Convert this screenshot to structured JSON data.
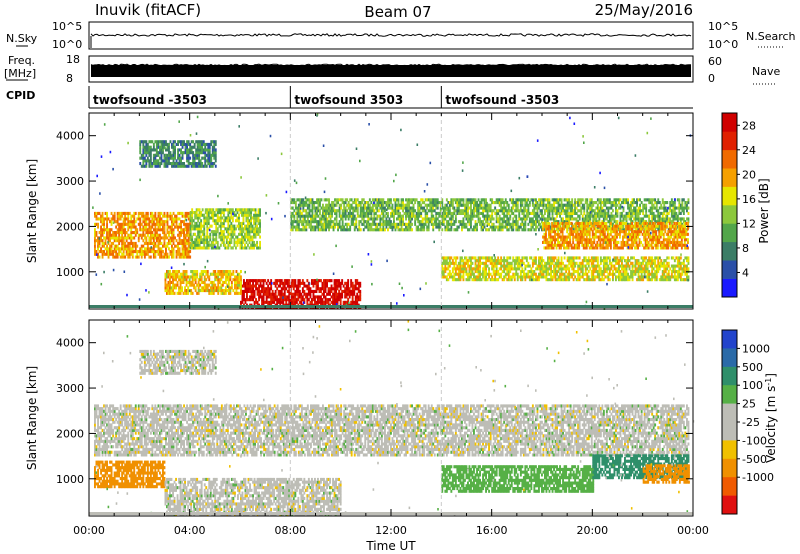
{
  "header": {
    "station": "Inuvik (fitACF)",
    "beam": "Beam 07",
    "date": "25/May/2016"
  },
  "top_panels": {
    "nsky_label": "N.Sky",
    "nsky_ticks": [
      "10^5",
      "10^0"
    ],
    "nsearch_label": "N.Search",
    "nsearch_ticks": [
      "10^5",
      "10^0"
    ],
    "freq_label": "Freq.",
    "freq_unit": "[MHz]",
    "freq_ticks": [
      "18",
      "8"
    ],
    "nave_label": "Nave",
    "nave_ticks": [
      "60",
      "0"
    ],
    "cpid_label": "CPID",
    "cpid_segments": [
      {
        "name": "twofsound -3503",
        "start_hour": 0
      },
      {
        "name": "twofsound 3503",
        "start_hour": 8
      },
      {
        "name": "twofsound -3503",
        "start_hour": 14
      }
    ]
  },
  "axes": {
    "xlabel": "Time UT",
    "x_ticks": [
      "00:00",
      "04:00",
      "08:00",
      "12:00",
      "16:00",
      "20:00",
      "00:00"
    ],
    "ylabel": "Slant Range [km]",
    "y_ticks": [
      "1000",
      "2000",
      "3000",
      "4000"
    ]
  },
  "colorbars": {
    "power": {
      "label": "Power [dB]",
      "ticks": [
        "4",
        "8",
        "12",
        "16",
        "20",
        "24",
        "28"
      ],
      "colors": [
        "#1a1aff",
        "#2a4fa8",
        "#3b7d66",
        "#52a64a",
        "#8cc83c",
        "#e6e600",
        "#f5a000",
        "#f06a00",
        "#e02000",
        "#d00000"
      ]
    },
    "velocity": {
      "label": "Velocity [m s",
      "label_exp": "-1",
      "label_end": "]",
      "ticks": [
        "1000",
        "500",
        "100",
        "25",
        "-25",
        "-100",
        "-500",
        "-1000"
      ],
      "colors": [
        "#2244cc",
        "#2a6aa8",
        "#2f8f6a",
        "#56b046",
        "#bdbdb6",
        "#bdbdb6",
        "#f0c000",
        "#f09000",
        "#f05a00",
        "#e01010"
      ]
    }
  },
  "chart_data": [
    {
      "type": "heatmap",
      "title": "Power",
      "x_range_hours": [
        0,
        24
      ],
      "y_range_km": [
        180,
        4500
      ],
      "colorbar_label": "Power [dB]",
      "colorbar_range": [
        0,
        30
      ],
      "bands": [
        {
          "t0": 0.2,
          "t1": 4.0,
          "r0": 1300,
          "r1": 2300,
          "level": 20
        },
        {
          "t0": 4.0,
          "t1": 6.8,
          "r0": 1500,
          "r1": 2400,
          "level": 14
        },
        {
          "t0": 6.0,
          "t1": 10.8,
          "r0": 180,
          "r1": 800,
          "level": 28
        },
        {
          "t0": 3.0,
          "t1": 6.0,
          "r0": 500,
          "r1": 1000,
          "level": 18
        },
        {
          "t0": 8.0,
          "t1": 23.8,
          "r0": 1900,
          "r1": 2600,
          "level": 12
        },
        {
          "t0": 14.0,
          "t1": 23.8,
          "r0": 800,
          "r1": 1300,
          "level": 16
        },
        {
          "t0": 18.0,
          "t1": 23.8,
          "r0": 1500,
          "r1": 2100,
          "level": 20
        },
        {
          "t0": 2.0,
          "t1": 5.0,
          "r0": 3300,
          "r1": 3900,
          "level": 8
        }
      ]
    },
    {
      "type": "heatmap",
      "title": "Velocity",
      "x_range_hours": [
        0,
        24
      ],
      "y_range_km": [
        180,
        4500
      ],
      "colorbar_label": "Velocity [m s-1]",
      "colorbar_range": [
        -1000,
        1000
      ],
      "bands": [
        {
          "t0": 0.2,
          "t1": 23.8,
          "r0": 1500,
          "r1": 2600,
          "level": 0
        },
        {
          "t0": 0.2,
          "t1": 3.0,
          "r0": 800,
          "r1": 1400,
          "level": -300
        },
        {
          "t0": 3.0,
          "t1": 10.0,
          "r0": 180,
          "r1": 1000,
          "level": 0
        },
        {
          "t0": 14.0,
          "t1": 20.0,
          "r0": 700,
          "r1": 1300,
          "level": 60
        },
        {
          "t0": 20.0,
          "t1": 23.8,
          "r0": 1000,
          "r1": 1500,
          "level": 200
        },
        {
          "t0": 22.0,
          "t1": 23.8,
          "r0": 900,
          "r1": 1300,
          "level": -300
        },
        {
          "t0": 2.0,
          "t1": 5.0,
          "r0": 3300,
          "r1": 3800,
          "level": 0
        }
      ]
    }
  ]
}
